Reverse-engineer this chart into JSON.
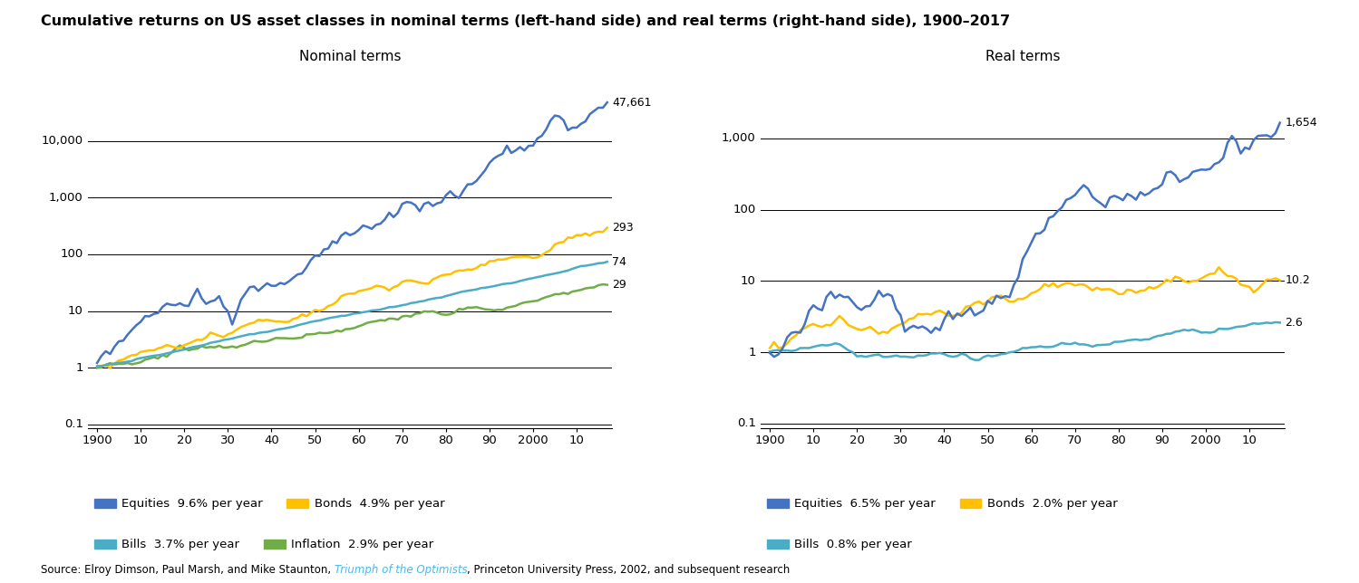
{
  "title": "Cumulative returns on US asset classes in nominal terms (left-hand side) and real terms (right-hand side), 1900–2017",
  "subtitle_left": "Nominal terms",
  "subtitle_right": "Real terms",
  "source_normal": "Source: Elroy Dimson, Paul Marsh, and Mike Staunton, ",
  "source_link": "Triumph of the Optimists",
  "source_end": ", Princeton University Press, 2002, and subsequent research",
  "source_link_color": "#4db8e8",
  "colors": {
    "equities": "#4472C4",
    "bonds": "#FFC000",
    "bills": "#4BACC6",
    "inflation": "#70AD47"
  },
  "yticks_left": [
    0.1,
    1,
    10,
    100,
    1000,
    10000
  ],
  "ytick_labels_left": [
    "0.1",
    "1",
    "10",
    "100",
    "1,000",
    "10,000"
  ],
  "yticks_right": [
    0.1,
    1,
    10,
    100,
    1000
  ],
  "ytick_labels_right": [
    "0.1",
    "1",
    "10",
    "100",
    "1,000"
  ],
  "xtick_positions": [
    1900,
    1910,
    1920,
    1930,
    1940,
    1950,
    1960,
    1970,
    1980,
    1990,
    2000,
    2010
  ],
  "xtick_labels": [
    "1900",
    "10",
    "20",
    "30",
    "40",
    "50",
    "60",
    "70",
    "80",
    "90",
    "2000",
    "10"
  ],
  "legend_left_row1": [
    {
      "label": "Equities  9.6% per year",
      "color": "#4472C4"
    },
    {
      "label": "Bonds  4.9% per year",
      "color": "#FFC000"
    }
  ],
  "legend_left_row2": [
    {
      "label": "Bills  3.7% per year",
      "color": "#4BACC6"
    },
    {
      "label": "Inflation  2.9% per year",
      "color": "#70AD47"
    }
  ],
  "legend_right_row1": [
    {
      "label": "Equities  6.5% per year",
      "color": "#4472C4"
    },
    {
      "label": "Bonds  2.0% per year",
      "color": "#FFC000"
    }
  ],
  "legend_right_row2": [
    {
      "label": "Bills  0.8% per year",
      "color": "#4BACC6"
    }
  ],
  "bg_color": "#FFFFFF",
  "title_fontsize": 11.5,
  "subtitle_fontsize": 11,
  "tick_fontsize": 9.5,
  "legend_fontsize": 9.5,
  "source_fontsize": 8.5,
  "lw": 1.8
}
